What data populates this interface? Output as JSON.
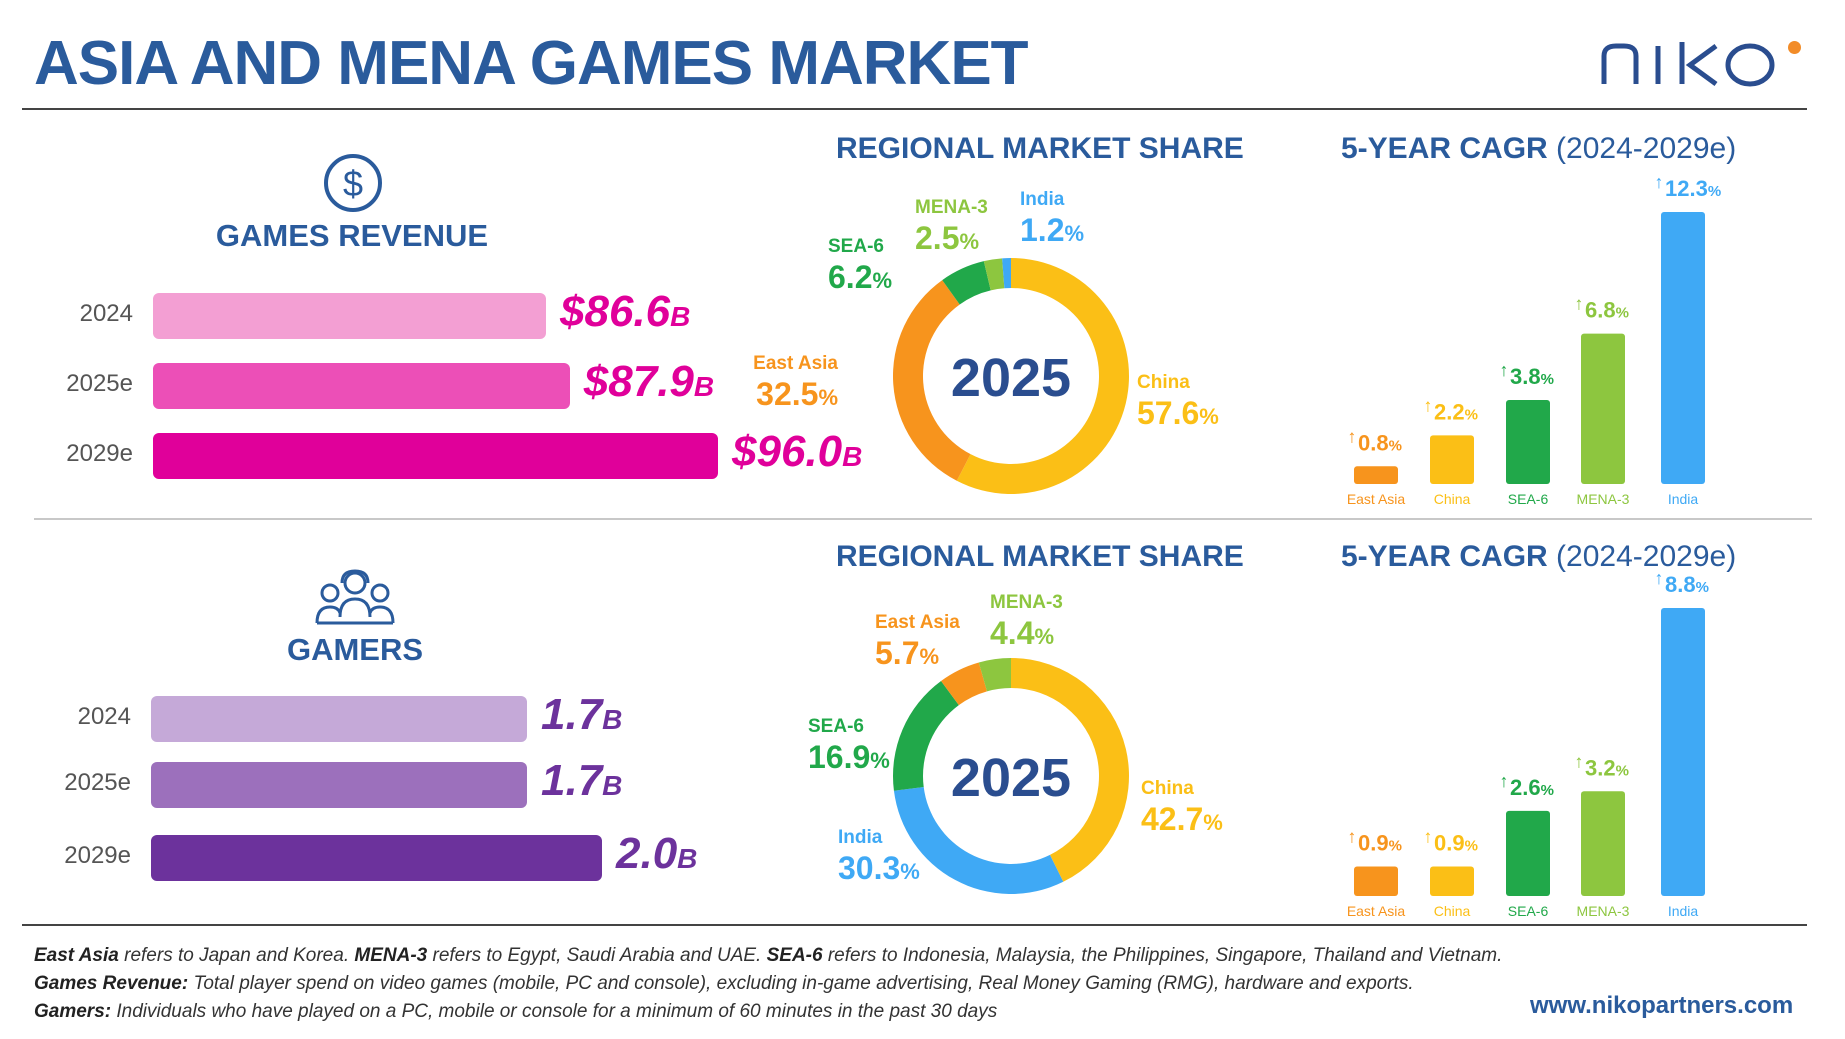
{
  "title": "ASIA AND MENA GAMES MARKET",
  "logo": "NIKO",
  "url": "www.nikopartners.com",
  "colors": {
    "East Asia": "#f7941d",
    "China": "#fbbf16",
    "SEA-6": "#21a84a",
    "MENA-3": "#8dc63f",
    "India": "#3fa9f5"
  },
  "revenue": {
    "title": "GAMES REVENUE",
    "icon": "dollar-circle-icon",
    "unit": "B",
    "rows": [
      {
        "year": "2024",
        "value": 86.6,
        "label": "$86.6",
        "color": "#f39fd3"
      },
      {
        "year": "2025e",
        "value": 87.9,
        "label": "$87.9",
        "color": "#ec4fb7"
      },
      {
        "year": "2029e",
        "value": 96.0,
        "label": "$96.0",
        "color": "#e0009a"
      }
    ],
    "value_color": "#e0009a"
  },
  "gamers": {
    "title": "GAMERS",
    "icon": "people-group-icon",
    "unit": "B",
    "rows": [
      {
        "year": "2024",
        "value": 1.7,
        "label": "1.7",
        "color": "#c5a9d8"
      },
      {
        "year": "2025e",
        "value": 1.7,
        "label": "1.7",
        "color": "#9c70bc"
      },
      {
        "year": "2029e",
        "value": 2.0,
        "label": "2.0",
        "color": "#6c329c"
      }
    ],
    "value_color": "#6c329c"
  },
  "share_heading": "REGIONAL MARKET SHARE",
  "cagr_heading": "5-YEAR CAGR",
  "cagr_period": "(2024-2029e)",
  "chart_data": [
    {
      "type": "pie",
      "title": "REGIONAL MARKET SHARE",
      "center_label": "2025",
      "categories": [
        "China",
        "East Asia",
        "SEA-6",
        "MENA-3",
        "India"
      ],
      "values": [
        57.6,
        32.5,
        6.2,
        2.5,
        1.2
      ],
      "labels": [
        "57.6",
        "32.5",
        "6.2",
        "2.5",
        "1.2"
      ]
    },
    {
      "type": "bar",
      "title": "5-YEAR CAGR (2024-2029e)",
      "categories": [
        "East Asia",
        "China",
        "SEA-6",
        "MENA-3",
        "India"
      ],
      "values": [
        0.8,
        2.2,
        3.8,
        6.8,
        12.3
      ],
      "labels": [
        "0.8",
        "2.2",
        "3.8",
        "6.8",
        "12.3"
      ]
    },
    {
      "type": "pie",
      "title": "REGIONAL MARKET SHARE",
      "center_label": "2025",
      "categories": [
        "China",
        "India",
        "SEA-6",
        "East Asia",
        "MENA-3"
      ],
      "values": [
        42.7,
        30.3,
        16.9,
        5.7,
        4.4
      ],
      "labels": [
        "42.7",
        "30.3",
        "16.9",
        "5.7",
        "4.4"
      ]
    },
    {
      "type": "bar",
      "title": "5-YEAR CAGR (2024-2029e)",
      "categories": [
        "East Asia",
        "China",
        "SEA-6",
        "MENA-3",
        "India"
      ],
      "values": [
        0.9,
        0.9,
        2.6,
        3.2,
        8.8
      ],
      "labels": [
        "0.9",
        "0.9",
        "2.6",
        "3.2",
        "8.8"
      ]
    }
  ],
  "footnotes": [
    {
      "parts": [
        {
          "b": "East Asia"
        },
        {
          "t": " refers to Japan and Korea. "
        },
        {
          "b": "MENA-3"
        },
        {
          "t": " refers to Egypt, Saudi Arabia and UAE. "
        },
        {
          "b": "SEA-6"
        },
        {
          "t": " refers to Indonesia, Malaysia, the Philippines, Singapore, Thailand and Vietnam."
        }
      ]
    },
    {
      "parts": [
        {
          "b": "Games Revenue:"
        },
        {
          "t": " Total player spend on video games (mobile, PC and console), excluding in-game advertising, Real Money Gaming (RMG), hardware and exports."
        }
      ]
    },
    {
      "parts": [
        {
          "b": "Gamers:"
        },
        {
          "t": " Individuals who have played on a PC, mobile or console for a minimum of 60 minutes in the past 30 days"
        }
      ]
    }
  ]
}
